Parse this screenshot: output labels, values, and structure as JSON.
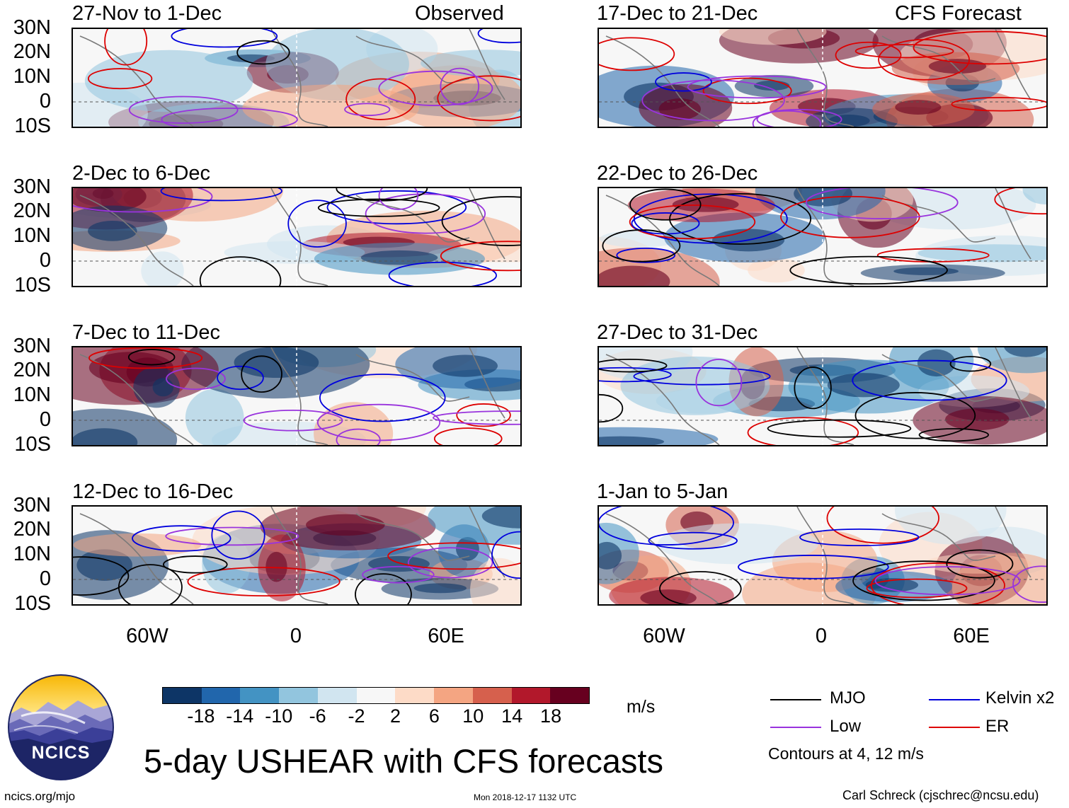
{
  "map_panels": [
    {
      "id": "p1",
      "title": "27-Nov to 1-Dec",
      "tag": "Observed"
    },
    {
      "id": "p2",
      "title": "2-Dec to 6-Dec",
      "tag": ""
    },
    {
      "id": "p3",
      "title": "7-Dec to 11-Dec",
      "tag": ""
    },
    {
      "id": "p4",
      "title": "12-Dec to 16-Dec",
      "tag": ""
    },
    {
      "id": "p5",
      "title": "17-Dec to 21-Dec",
      "tag": "CFS Forecast"
    },
    {
      "id": "p6",
      "title": "22-Dec to 26-Dec",
      "tag": ""
    },
    {
      "id": "p7",
      "title": "27-Dec to 31-Dec",
      "tag": ""
    },
    {
      "id": "p8",
      "title": "1-Jan to 5-Jan",
      "tag": ""
    }
  ],
  "lat_labels": [
    "30N",
    "20N",
    "10N",
    "0",
    "10S"
  ],
  "lon_labels": [
    "60W",
    "0",
    "60E"
  ],
  "colorbar": {
    "colors": [
      "#0d3566",
      "#2166ac",
      "#4393c3",
      "#92c5de",
      "#d1e5f0",
      "#f7f7f7",
      "#fddbc7",
      "#f4a582",
      "#d6604d",
      "#b2182b",
      "#67001f"
    ],
    "ticks": [
      "-18",
      "-14",
      "-10",
      "-6",
      "-2",
      "2",
      "6",
      "10",
      "14",
      "18"
    ],
    "units": "m/s"
  },
  "legend": {
    "items": [
      {
        "label": "MJO",
        "color": "#000000"
      },
      {
        "label": "Kelvin x2",
        "color": "#0000dd"
      },
      {
        "label": "Low",
        "color": "#9933dd"
      },
      {
        "label": "ER",
        "color": "#dd0000"
      }
    ],
    "note": "Contours at 4, 12 m/s"
  },
  "logo_text": "NCICS",
  "main_title": "5-day USHEAR with CFS forecasts",
  "footer": {
    "url": "ncics.org/mjo",
    "timestamp": "Mon 2018-12-17 1132 UTC",
    "credit": "Carl Schreck (cjschrec@ncsu.edu)"
  }
}
